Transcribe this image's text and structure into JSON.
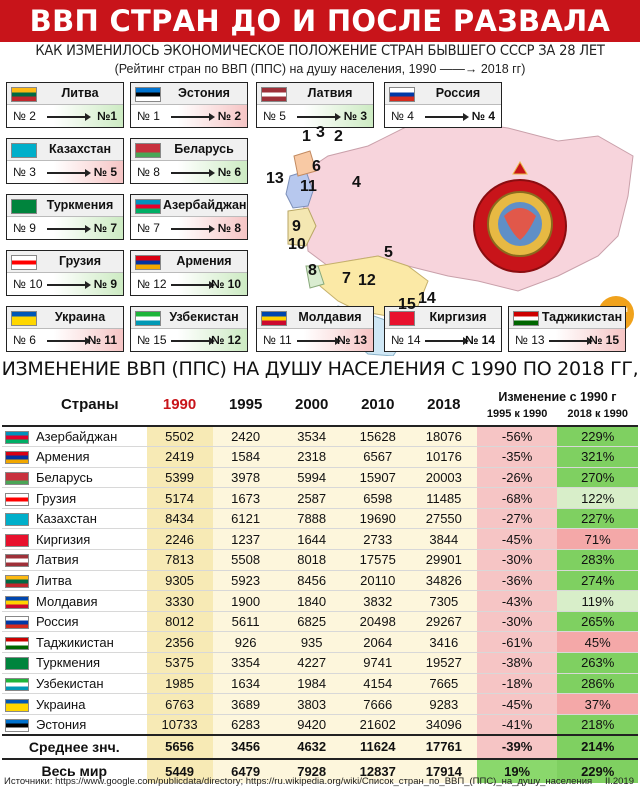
{
  "title": "ВВП СТРАН ДО И ПОСЛЕ РАЗВАЛА СССР",
  "subtitle": "КАК ИЗМЕНИЛОСЬ ЭКОНОМИЧЕСКОЕ ПОЛОЖЕНИЕ СТРАН БЫВШЕГО СССР ЗА 28 ЛЕТ",
  "subtitle2": "(Рейтинг стран по ВВП (ППС) на душу населения, 1990 ——→ 2018 гг)",
  "cards": [
    {
      "name": "Литва",
      "from": "№ 2",
      "to": "№1",
      "trend": "up",
      "flag": [
        "#fdb913",
        "#006a44",
        "#c1272d"
      ]
    },
    {
      "name": "Эстония",
      "from": "№ 1",
      "to": "№ 2",
      "trend": "down",
      "flag": [
        "#0072ce",
        "#000000",
        "#ffffff"
      ]
    },
    {
      "name": "Латвия",
      "from": "№ 5",
      "to": "№ 3",
      "trend": "up",
      "flag": [
        "#9e3039",
        "#ffffff",
        "#9e3039"
      ]
    },
    {
      "name": "Россия",
      "from": "№ 4",
      "to": "№ 4",
      "trend": "same",
      "flag": [
        "#ffffff",
        "#0039a6",
        "#d52b1e"
      ]
    },
    {
      "name": "Казахстан",
      "from": "№ 3",
      "to": "№ 5",
      "trend": "down",
      "flag": [
        "#00afca",
        "#00afca",
        "#00afca"
      ]
    },
    {
      "name": "Беларусь",
      "from": "№ 8",
      "to": "№ 6",
      "trend": "up",
      "flag": [
        "#c8313e",
        "#c8313e",
        "#4aa657"
      ]
    },
    {
      "name": "Туркмения",
      "from": "№ 9",
      "to": "№ 7",
      "trend": "up",
      "flag": [
        "#00843d",
        "#00843d",
        "#00843d"
      ]
    },
    {
      "name": "Азербайджан",
      "from": "№ 7",
      "to": "№ 8",
      "trend": "down",
      "flag": [
        "#0092bc",
        "#e4002b",
        "#00af66"
      ]
    },
    {
      "name": "Грузия",
      "from": "№ 10",
      "to": "№ 9",
      "trend": "up",
      "flag": [
        "#ffffff",
        "#ff0000",
        "#ffffff"
      ]
    },
    {
      "name": "Армения",
      "from": "№ 12",
      "to": "№ 10",
      "trend": "up",
      "flag": [
        "#d90012",
        "#0033a0",
        "#f2a800"
      ]
    },
    {
      "name": "Украина",
      "from": "№ 6",
      "to": "№ 11",
      "trend": "down",
      "flag": [
        "#0057b7",
        "#ffd700",
        "#ffd700"
      ]
    },
    {
      "name": "Узбекистан",
      "from": "№ 15",
      "to": "№ 12",
      "trend": "up",
      "flag": [
        "#1eb53a",
        "#ffffff",
        "#0099b5"
      ]
    },
    {
      "name": "Молдавия",
      "from": "№ 11",
      "to": "№ 13",
      "trend": "down",
      "flag": [
        "#0046ae",
        "#ffd200",
        "#cc092f"
      ]
    },
    {
      "name": "Киргизия",
      "from": "№ 14",
      "to": "№ 14",
      "trend": "same",
      "flag": [
        "#e8112d",
        "#e8112d",
        "#e8112d"
      ]
    },
    {
      "name": "Таджикистан",
      "from": "№ 13",
      "to": "№ 15",
      "trend": "down",
      "flag": [
        "#cc0000",
        "#ffffff",
        "#006600"
      ]
    }
  ],
  "map_numbers": [
    "1",
    "3",
    "2",
    "6",
    "13",
    "11",
    "4",
    "9",
    "10",
    "5",
    "8",
    "7",
    "12",
    "15",
    "14"
  ],
  "section_title": "ИЗМЕНЕНИЕ ВВП (ППС) НА ДУШУ НАСЕЛЕНИЯ С 1990 ПО 2018 ГГ, $",
  "table": {
    "headers": [
      "Страны",
      "1990",
      "1995",
      "2000",
      "2010",
      "2018"
    ],
    "change_header": "Изменение с 1990 г",
    "change_sub": [
      "1995 к 1990",
      "2018 к 1990"
    ],
    "rows": [
      {
        "name": "Азербайджан",
        "v": [
          "5502",
          "2420",
          "3534",
          "15628",
          "18076"
        ],
        "c1": "-56%",
        "c2": "229%",
        "flag": [
          "#0092bc",
          "#e4002b",
          "#00af66"
        ]
      },
      {
        "name": "Армения",
        "v": [
          "2419",
          "1584",
          "2318",
          "6567",
          "10176"
        ],
        "c1": "-35%",
        "c2": "321%",
        "flag": [
          "#d90012",
          "#0033a0",
          "#f2a800"
        ]
      },
      {
        "name": "Беларусь",
        "v": [
          "5399",
          "3978",
          "5994",
          "15907",
          "20003"
        ],
        "c1": "-26%",
        "c2": "270%",
        "flag": [
          "#c8313e",
          "#c8313e",
          "#4aa657"
        ]
      },
      {
        "name": "Грузия",
        "v": [
          "5174",
          "1673",
          "2587",
          "6598",
          "11485"
        ],
        "c1": "-68%",
        "c2": "122%",
        "flag": [
          "#ffffff",
          "#ff0000",
          "#ffffff"
        ]
      },
      {
        "name": "Казахстан",
        "v": [
          "8434",
          "6121",
          "7888",
          "19690",
          "27550"
        ],
        "c1": "-27%",
        "c2": "227%",
        "flag": [
          "#00afca",
          "#00afca",
          "#00afca"
        ]
      },
      {
        "name": "Киргизия",
        "v": [
          "2246",
          "1237",
          "1644",
          "2733",
          "3844"
        ],
        "c1": "-45%",
        "c2": "71%",
        "flag": [
          "#e8112d",
          "#e8112d",
          "#e8112d"
        ]
      },
      {
        "name": "Латвия",
        "v": [
          "7813",
          "5508",
          "8018",
          "17575",
          "29901"
        ],
        "c1": "-30%",
        "c2": "283%",
        "flag": [
          "#9e3039",
          "#ffffff",
          "#9e3039"
        ]
      },
      {
        "name": "Литва",
        "v": [
          "9305",
          "5923",
          "8456",
          "20110",
          "34826"
        ],
        "c1": "-36%",
        "c2": "274%",
        "flag": [
          "#fdb913",
          "#006a44",
          "#c1272d"
        ]
      },
      {
        "name": "Молдавия",
        "v": [
          "3330",
          "1900",
          "1840",
          "3832",
          "7305"
        ],
        "c1": "-43%",
        "c2": "119%",
        "flag": [
          "#0046ae",
          "#ffd200",
          "#cc092f"
        ]
      },
      {
        "name": "Россия",
        "v": [
          "8012",
          "5611",
          "6825",
          "20498",
          "29267"
        ],
        "c1": "-30%",
        "c2": "265%",
        "flag": [
          "#ffffff",
          "#0039a6",
          "#d52b1e"
        ]
      },
      {
        "name": "Таджикистан",
        "v": [
          "2356",
          "926",
          "935",
          "2064",
          "3416"
        ],
        "c1": "-61%",
        "c2": "45%",
        "flag": [
          "#cc0000",
          "#ffffff",
          "#006600"
        ]
      },
      {
        "name": "Туркмения",
        "v": [
          "5375",
          "3354",
          "4227",
          "9741",
          "19527"
        ],
        "c1": "-38%",
        "c2": "263%",
        "flag": [
          "#00843d",
          "#00843d",
          "#00843d"
        ]
      },
      {
        "name": "Узбекистан",
        "v": [
          "1985",
          "1634",
          "1984",
          "4154",
          "7665"
        ],
        "c1": "-18%",
        "c2": "286%",
        "flag": [
          "#1eb53a",
          "#ffffff",
          "#0099b5"
        ]
      },
      {
        "name": "Украина",
        "v": [
          "6763",
          "3689",
          "3803",
          "7666",
          "9283"
        ],
        "c1": "-45%",
        "c2": "37%",
        "flag": [
          "#0057b7",
          "#ffd700",
          "#ffd700"
        ]
      },
      {
        "name": "Эстония",
        "v": [
          "10733",
          "6283",
          "9420",
          "21602",
          "34096"
        ],
        "c1": "-41%",
        "c2": "218%",
        "flag": [
          "#0072ce",
          "#000000",
          "#ffffff"
        ]
      }
    ],
    "avg": {
      "name": "Среднее знч.",
      "v": [
        "5656",
        "3456",
        "4632",
        "11624",
        "17761"
      ],
      "c1": "-39%",
      "c2": "214%"
    },
    "world": {
      "name": "Весь мир",
      "v": [
        "5449",
        "6479",
        "7928",
        "12837",
        "17914"
      ],
      "c1": "19%",
      "c2": "229%"
    }
  },
  "footer": {
    "sources": "Источники: https://www.google.com/publicdata/directory; https://ru.wikipedia.org/wiki/Список_стран_по_ВВП_(ППС)_на_душу_населения",
    "date": "II.2019"
  },
  "colors": {
    "red": "#c8141a",
    "map_pink": "#f7d4dc",
    "yellow": "#fbe9a6",
    "green": "#6cc24a",
    "light_red": "#f4a8a8"
  }
}
